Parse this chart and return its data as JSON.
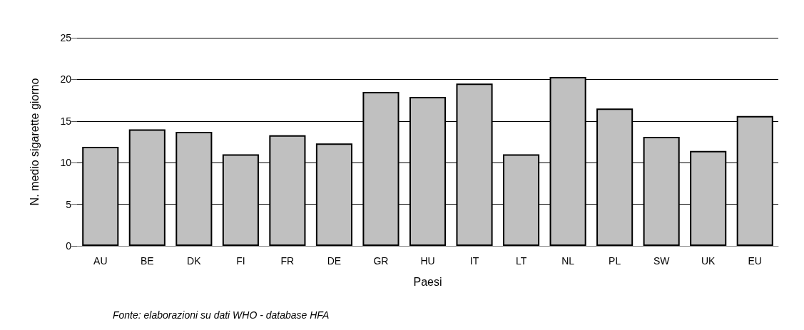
{
  "chart_data": {
    "type": "bar",
    "xlabel": "Paesi",
    "ylabel": "N. medio sigarette giorno",
    "categories": [
      "AU",
      "BE",
      "DK",
      "FI",
      "FR",
      "DE",
      "GR",
      "HU",
      "IT",
      "LT",
      "NL",
      "PL",
      "SW",
      "UK",
      "EU"
    ],
    "values": [
      11.9,
      14.0,
      13.7,
      11.0,
      13.3,
      12.3,
      18.5,
      17.9,
      19.5,
      11.0,
      20.3,
      16.5,
      13.1,
      11.4,
      15.6
    ],
    "color": "#c0c0c0",
    "ylim": [
      0,
      25
    ],
    "yticks": [
      0,
      5,
      10,
      15,
      20,
      25
    ],
    "grid": "y",
    "annotations": [
      "Fonte: elaborazioni su dati WHO - database HFA"
    ]
  }
}
